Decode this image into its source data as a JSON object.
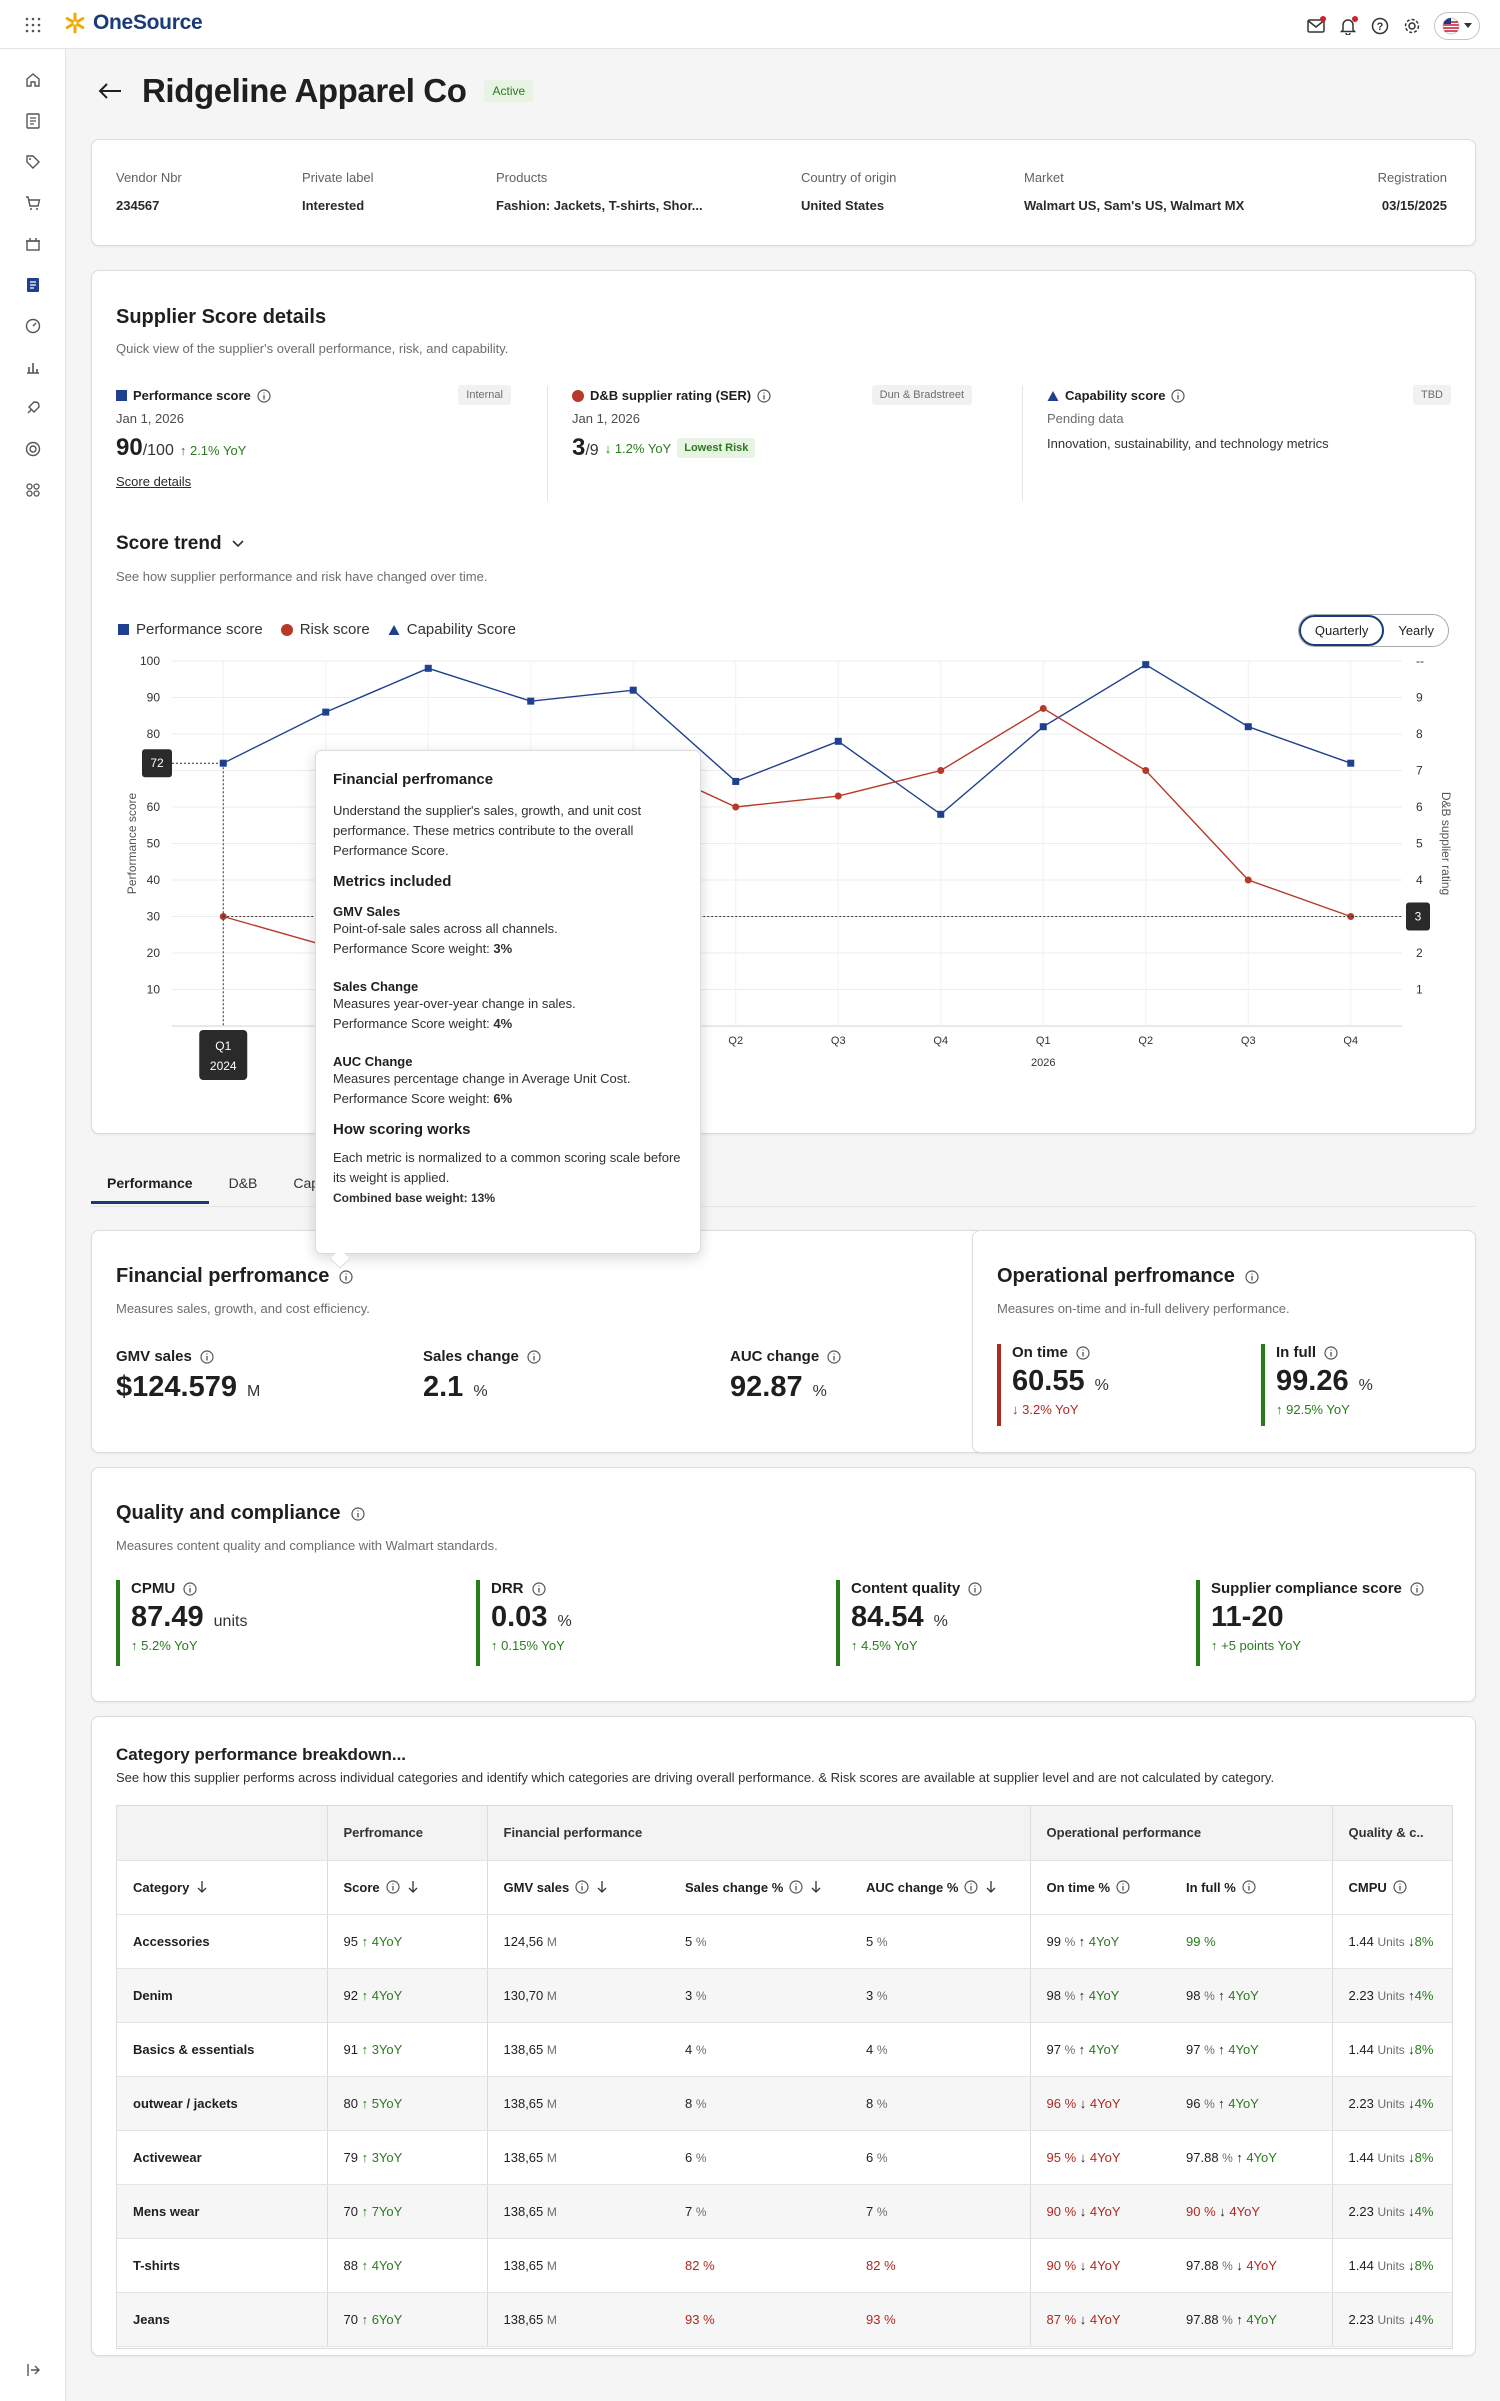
{
  "app": {
    "logo_text": "OneSource"
  },
  "vendor": {
    "name": "Ridgeline Apparel Co",
    "status": "Active"
  },
  "info": [
    {
      "label": "Vendor Nbr",
      "value": "234567"
    },
    {
      "label": "Private label",
      "value": "Interested"
    },
    {
      "label": "Products",
      "value": "Fashion: Jackets, T-shirts, Shor..."
    },
    {
      "label": "Country of origin",
      "value": "United States"
    },
    {
      "label": "Market",
      "value": "Walmart US, Sam's US, Walmart MX"
    },
    {
      "label": "Registration",
      "value": "03/15/2025"
    }
  ],
  "supplier_score": {
    "title": "Supplier Score details",
    "subtitle": "Quick view of the supplier's overall performance, risk, and capability.",
    "performance": {
      "label": "Performance score",
      "tag": "Internal",
      "date": "Jan 1, 2026",
      "value": "90",
      "denominator": "/100",
      "yoy": "2.1% YoY",
      "link": "Score details",
      "color": "#1f3f8f"
    },
    "dnb": {
      "label": "D&B supplier rating (SER)",
      "tag": "Dun & Bradstreet",
      "date": "Jan 1, 2026",
      "value": "3",
      "denominator": "/9",
      "yoy": "1.2% YoY",
      "risk_badge": "Lowest Risk",
      "color": "#b7392a"
    },
    "capability": {
      "label": "Capability score",
      "tag": "TBD",
      "pending": "Pending data",
      "desc": "Innovation, sustainability, and technology metrics",
      "color": "#1f3f8f"
    }
  },
  "trend": {
    "title": "Score trend",
    "subtitle": "See how supplier performance and risk have changed over time.",
    "toggle": [
      "Quarterly",
      "Yearly"
    ],
    "legend": [
      "Performance score",
      "Risk score",
      "Capability Score"
    ]
  },
  "chart_data": {
    "type": "line",
    "x": [
      "Q1 2024",
      "Q2",
      "Q3",
      "Q4",
      "Q1",
      "Q2",
      "Q3",
      "Q4",
      "Q1",
      "Q2",
      "Q3",
      "Q4"
    ],
    "x_tick_labels": [
      "Q1",
      "Q2",
      "Q3",
      "Q4",
      "Q1",
      "Q2",
      "Q3",
      "Q4",
      "Q1",
      "Q2",
      "Q3",
      "Q4"
    ],
    "year_label": "2026",
    "ylabel": "Performance score",
    "y2label": "D&B supplier rating",
    "ylim": [
      0,
      100
    ],
    "y2lim": [
      0,
      10
    ],
    "y_ticks": [
      10,
      20,
      30,
      40,
      50,
      60,
      70,
      80,
      90,
      100
    ],
    "y2_ticks": [
      "1",
      "2",
      "3",
      "4",
      "5",
      "6",
      "7",
      "8",
      "9",
      "--"
    ],
    "series": [
      {
        "name": "Performance score",
        "axis": "left",
        "color": "#1f3f8f",
        "values": [
          72,
          86,
          98,
          89,
          92,
          67,
          78,
          58,
          82,
          99,
          82,
          72
        ]
      },
      {
        "name": "Risk score",
        "axis": "right",
        "color": "#b7392a",
        "values": [
          3,
          2.2,
          6.8,
          6.4,
          7.3,
          6,
          6.3,
          7,
          8.7,
          7,
          4,
          3
        ]
      }
    ],
    "crosshair": {
      "x_label": "Q1",
      "x_sub": "2024",
      "left_value": "72",
      "right_value": "3"
    },
    "grid": true
  },
  "tooltip": {
    "title": "Financial perfromance",
    "desc": "Understand the supplier's sales, growth, and unit cost performance. These metrics contribute to the overall Performance Score.",
    "metrics_title": "Metrics included",
    "metrics": [
      {
        "name": "GMV Sales",
        "desc": "Point-of-sale sales across all channels.",
        "weight_label": "Performance Score weight: ",
        "weight": "3%"
      },
      {
        "name": "Sales Change",
        "desc": "Measures year-over-year change in sales.",
        "weight_label": "Performance Score weight: ",
        "weight": "4%"
      },
      {
        "name": "AUC Change",
        "desc": "Measures percentage change in Average Unit Cost.",
        "weight_label": "Performance Score weight: ",
        "weight": "6%"
      }
    ],
    "how_title": "How scoring works",
    "how_desc": "Each metric is normalized to a common scoring scale before its weight is applied.",
    "combined": "Combined base weight: 13%"
  },
  "tabs": [
    "Performance",
    "D&B",
    "Capa"
  ],
  "financial": {
    "title": "Financial perfromance",
    "subtitle": "Measures sales, growth, and cost efficiency.",
    "kpis": [
      {
        "label": "GMV sales",
        "value": "$124.579",
        "unit": "M"
      },
      {
        "label": "Sales change",
        "value": "2.1",
        "unit": "%"
      },
      {
        "label": "AUC change",
        "value": "92.87",
        "unit": "%"
      }
    ]
  },
  "operational": {
    "title": "Operational perfromance",
    "subtitle": "Measures on-time and in-full delivery performance.",
    "kpis": [
      {
        "label": "On time",
        "value": "60.55",
        "unit": "%",
        "yoy": "3.2%  YoY",
        "dir": "down"
      },
      {
        "label": "In full",
        "value": "99.26",
        "unit": "%",
        "yoy": "92.5%  YoY",
        "dir": "up"
      }
    ]
  },
  "quality": {
    "title": "Quality and compliance",
    "subtitle": "Measures content quality and compliance with Walmart standards.",
    "kpis": [
      {
        "label": "CPMU",
        "value": "87.49",
        "unit": "units",
        "yoy": "5.2% YoY"
      },
      {
        "label": "DRR",
        "value": "0.03",
        "unit": "%",
        "yoy": "0.15%  YoY"
      },
      {
        "label": "Content quality",
        "value": "84.54",
        "unit": "%",
        "yoy": "4.5% YoY"
      },
      {
        "label": "Supplier compliance score",
        "value": "11-20",
        "unit": "",
        "yoy": "+5 points YoY"
      }
    ]
  },
  "category": {
    "title": "Category performance breakdown...",
    "subtitle": "See how this supplier performs across individual categories and identify which categories are driving overall performance. & Risk scores are available at supplier level and are not calculated by category.",
    "group_headers": [
      "Perfromance",
      "Financial performance",
      "Operational performance",
      "Quality & c.."
    ],
    "columns": [
      "Category",
      "Score",
      "GMV sales",
      "Sales change %",
      "AUC change %",
      "On time %",
      "In full %",
      "CMPU"
    ],
    "rows": [
      {
        "category": "Accessories",
        "score": "95",
        "score_yoy": "4YoY",
        "gmv": "124,56",
        "sales": "5",
        "sales_red": false,
        "auc": "5",
        "auc_red": false,
        "ontime": "99",
        "ontime_red": false,
        "ontime_yoy": "4YoY",
        "ontime_dir": "up",
        "infull": "99",
        "infull_green": true,
        "infull_yoy": "",
        "infull_dir": "",
        "cmpu": "1.44",
        "cmpu_yoy": "8%",
        "cmpu_dir": "down"
      },
      {
        "category": "Denim",
        "score": "92",
        "score_yoy": "4YoY",
        "gmv": "130,70",
        "sales": "3",
        "sales_red": false,
        "auc": "3",
        "auc_red": false,
        "ontime": "98",
        "ontime_red": false,
        "ontime_yoy": "4YoY",
        "ontime_dir": "up",
        "infull": "98",
        "infull_green": false,
        "infull_yoy": "4YoY",
        "infull_dir": "up",
        "cmpu": "2.23",
        "cmpu_yoy": "4%",
        "cmpu_dir": "up"
      },
      {
        "category": "Basics & essentials",
        "score": "91",
        "score_yoy": "3YoY",
        "gmv": "138,65",
        "sales": "4",
        "sales_red": false,
        "auc": "4",
        "auc_red": false,
        "ontime": "97",
        "ontime_red": false,
        "ontime_yoy": "4YoY",
        "ontime_dir": "up",
        "infull": "97",
        "infull_green": false,
        "infull_yoy": "4YoY",
        "infull_dir": "up",
        "cmpu": "1.44",
        "cmpu_yoy": "8%",
        "cmpu_dir": "down"
      },
      {
        "category": "outwear / jackets",
        "score": "80",
        "score_yoy": "5YoY",
        "gmv": "138,65",
        "sales": "8",
        "sales_red": false,
        "auc": "8",
        "auc_red": false,
        "ontime": "96",
        "ontime_red": true,
        "ontime_yoy": "4YoY",
        "ontime_dir": "down",
        "infull": "96",
        "infull_green": false,
        "infull_yoy": "4YoY",
        "infull_dir": "up",
        "cmpu": "2.23",
        "cmpu_yoy": "4%",
        "cmpu_dir": "down"
      },
      {
        "category": "Activewear",
        "score": "79",
        "score_yoy": "3YoY",
        "gmv": "138,65",
        "sales": "6",
        "sales_red": false,
        "auc": "6",
        "auc_red": false,
        "ontime": "95",
        "ontime_red": true,
        "ontime_yoy": "4YoY",
        "ontime_dir": "down",
        "infull": "97.88",
        "infull_green": false,
        "infull_yoy": "4YoY",
        "infull_dir": "up",
        "cmpu": "1.44",
        "cmpu_yoy": "8%",
        "cmpu_dir": "down"
      },
      {
        "category": "Mens wear",
        "score": "70",
        "score_yoy": "7YoY",
        "gmv": "138,65",
        "sales": "7",
        "sales_red": false,
        "auc": "7",
        "auc_red": false,
        "ontime": "90",
        "ontime_red": true,
        "ontime_yoy": "4YoY",
        "ontime_dir": "down",
        "infull": "90",
        "infull_red": true,
        "infull_green": false,
        "infull_yoy": "4YoY",
        "infull_dir": "down",
        "cmpu": "2.23",
        "cmpu_yoy": "4%",
        "cmpu_dir": "down"
      },
      {
        "category": "T-shirts",
        "score": "88",
        "score_yoy": "4YoY",
        "gmv": "138,65",
        "sales": "82",
        "sales_red": true,
        "auc": "82",
        "auc_red": true,
        "ontime": "90",
        "ontime_red": true,
        "ontime_yoy": "4YoY",
        "ontime_dir": "down",
        "infull": "97.88",
        "infull_green": false,
        "infull_yoy": "4YoY",
        "infull_dir": "down",
        "cmpu": "1.44",
        "cmpu_yoy": "8%",
        "cmpu_dir": "down"
      },
      {
        "category": "Jeans",
        "score": "70",
        "score_yoy": "6YoY",
        "gmv": "138,65",
        "sales": "93",
        "sales_red": true,
        "auc": "93",
        "auc_red": true,
        "ontime": "87",
        "ontime_red": true,
        "ontime_yoy": "4YoY",
        "ontime_dir": "down",
        "infull": "97.88",
        "infull_green": false,
        "infull_yoy": "4YoY",
        "infull_dir": "up",
        "cmpu": "2.23",
        "cmpu_yoy": "4%",
        "cmpu_dir": "down"
      }
    ]
  }
}
